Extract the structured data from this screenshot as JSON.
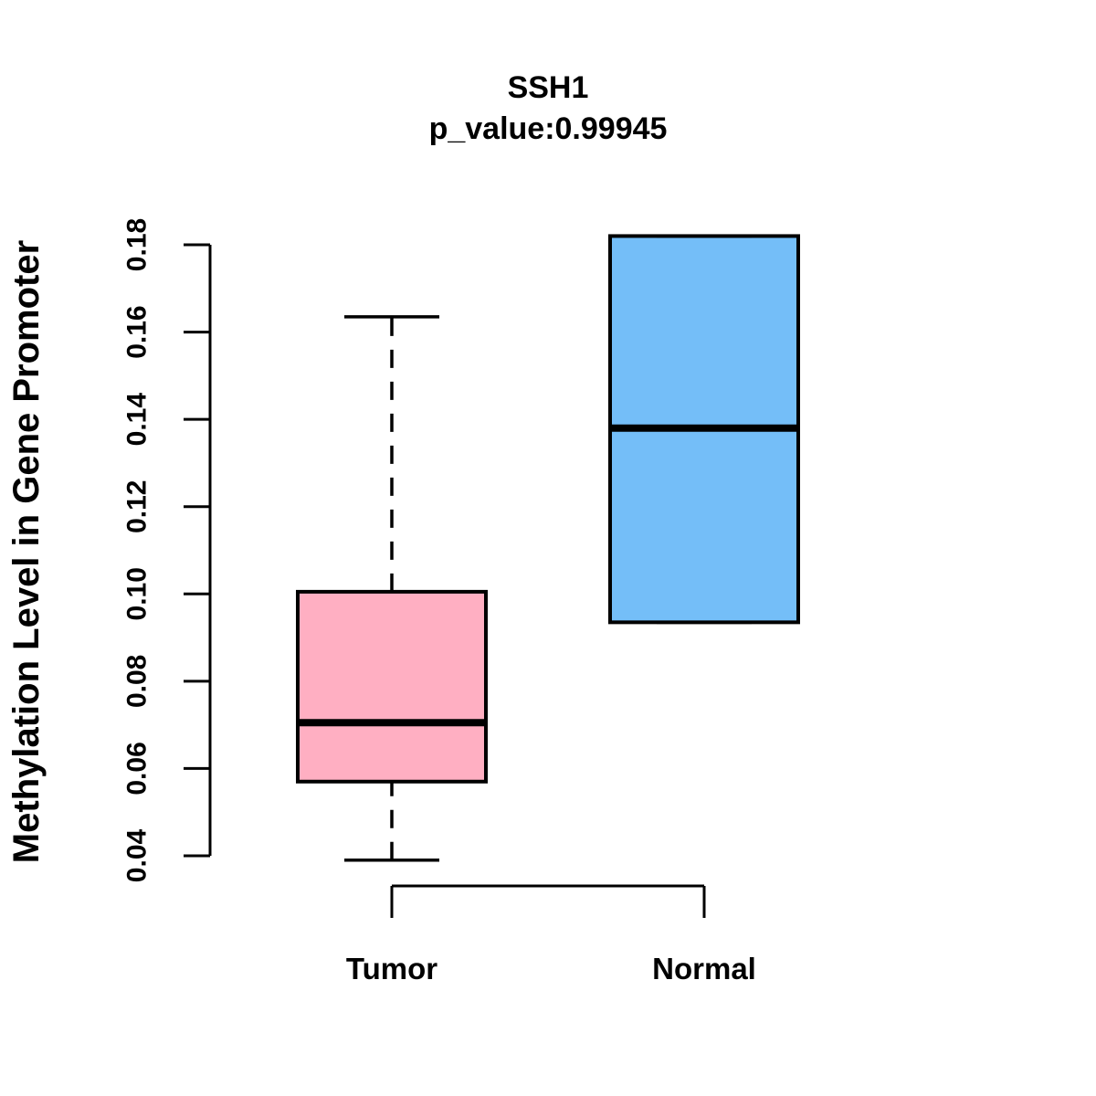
{
  "figure": {
    "title": "SSH1",
    "subtitle": "p_value:0.99945"
  },
  "chart_data": {
    "type": "boxplot",
    "title": "SSH1",
    "subtitle": "p_value:0.99945",
    "ylabel": "Methylation Level in Gene Promoter",
    "xlabel": "",
    "grid": false,
    "legend": "none",
    "categories": [
      "Tumor",
      "Normal"
    ],
    "y_axis": {
      "ticks": [
        0.04,
        0.06,
        0.08,
        0.1,
        0.12,
        0.14,
        0.16,
        0.18
      ],
      "labels": [
        "0.04",
        "0.06",
        "0.08",
        "0.10",
        "0.12",
        "0.14",
        "0.16",
        "0.18"
      ],
      "range": [
        0.033,
        0.188
      ]
    },
    "series": [
      {
        "name": "Tumor",
        "fill": "#FFAFC2",
        "stroke": "#000000",
        "min": 0.039,
        "q1": 0.057,
        "median": 0.0705,
        "q3": 0.1005,
        "max": 0.1635
      },
      {
        "name": "Normal",
        "fill": "#74BEF8",
        "stroke": "#000000",
        "min": 0.0935,
        "q1": 0.0935,
        "median": 0.138,
        "q3": 0.182,
        "max": 0.182
      }
    ]
  }
}
